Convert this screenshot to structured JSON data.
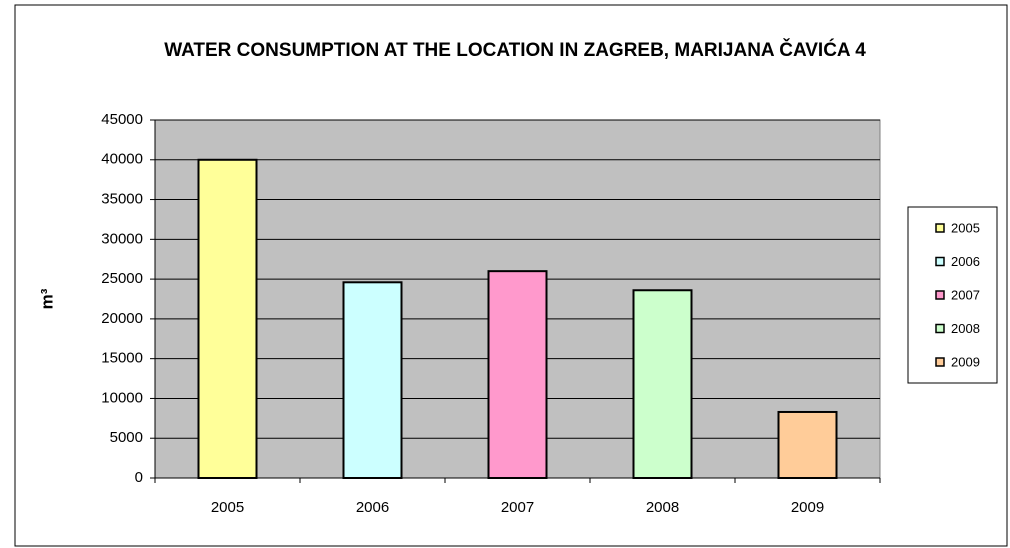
{
  "chart_data": {
    "type": "bar",
    "title": "WATER CONSUMPTION AT THE LOCATION IN ZAGREB, MARIJANA ČAVIĆA 4",
    "y_label": "m³",
    "categories": [
      "2005",
      "2006",
      "2007",
      "2008",
      "2009"
    ],
    "values": [
      40000,
      24600,
      26000,
      23600,
      8300
    ],
    "colors": [
      "#ffff99",
      "#ccffff",
      "#ff99cc",
      "#ccffcc",
      "#ffcc99"
    ],
    "ylim": [
      0,
      45000
    ],
    "yticks": [
      0,
      5000,
      10000,
      15000,
      20000,
      25000,
      30000,
      35000,
      40000,
      45000
    ],
    "grid": true,
    "legend": "right"
  }
}
